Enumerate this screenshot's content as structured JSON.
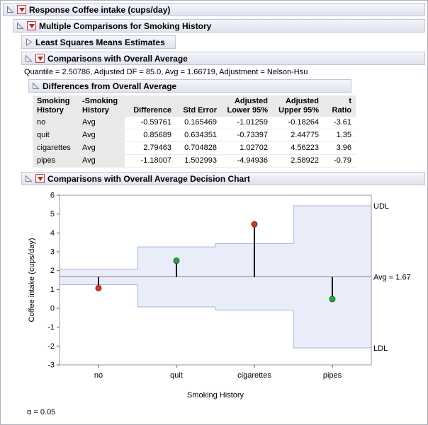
{
  "report": {
    "response_header": "Response Coffee intake (cups/day)",
    "multiple_comparisons_header": "Multiple Comparisons for Smoking History",
    "lsm_header": "Least Squares Means Estimates",
    "overall_avg_header": "Comparisons with Overall Average",
    "quantile_line": "Quantile = 2.50786, Adjusted DF = 85.0, Avg = 1.66719, Adjustment = Nelson-Hsu",
    "differences_header": "Differences from Overall Average",
    "decision_chart_header": "Comparisons with Overall Average Decision Chart",
    "alpha_note": "α = 0.05"
  },
  "table": {
    "col_headers_line1": [
      "Smoking",
      "-Smoking",
      "",
      "",
      "Adjusted",
      "Adjusted",
      ""
    ],
    "col_headers_line2": [
      "History",
      "History",
      "Difference",
      "Std Error",
      "Lower 95%",
      "Upper 95%",
      "t Ratio"
    ],
    "rows": [
      [
        "no",
        "Avg",
        "-0.59761",
        "0.165469",
        "-1.01259",
        "-0.18264",
        "-3.61"
      ],
      [
        "quit",
        "Avg",
        "0.85689",
        "0.634351",
        "-0.73397",
        "2.44775",
        "1.35"
      ],
      [
        "cigarettes",
        "Avg",
        "2.79463",
        "0.704828",
        "1.02702",
        "4.56223",
        "3.96"
      ],
      [
        "pipes",
        "Avg",
        "-1.18007",
        "1.502993",
        "-4.94936",
        "2.58922",
        "-0.79"
      ]
    ]
  },
  "chart_data": {
    "type": "decision-chart",
    "categories": [
      "no",
      "quit",
      "cigarettes",
      "pipes"
    ],
    "means": [
      1.07,
      2.52,
      4.46,
      0.49
    ],
    "udl": [
      2.082,
      3.258,
      3.435,
      5.437
    ],
    "ldl": [
      1.252,
      0.076,
      -0.1,
      -2.102
    ],
    "significant": [
      true,
      false,
      true,
      false
    ],
    "avg": 1.66719,
    "avg_label": "Avg = 1.67",
    "udl_label": "UDL",
    "ldl_label": "LDL",
    "ylabel": "Coffee intake (cups/day)",
    "xlabel": "Smoking History",
    "ylim": [
      -3,
      6
    ],
    "yticks": [
      6,
      5,
      4,
      3,
      2,
      1,
      0,
      -1,
      -2,
      -3
    ],
    "alpha": 0.05,
    "colors": {
      "region_fill": "#e9edf9",
      "region_stroke": "#a9b5d9",
      "needle": "#000000",
      "significant_point": "#d03a30",
      "significant_point_stroke": "#8c1f1a",
      "ok_point": "#2f9e41",
      "ok_point_stroke": "#17682a",
      "avg_line": "#888888"
    }
  }
}
